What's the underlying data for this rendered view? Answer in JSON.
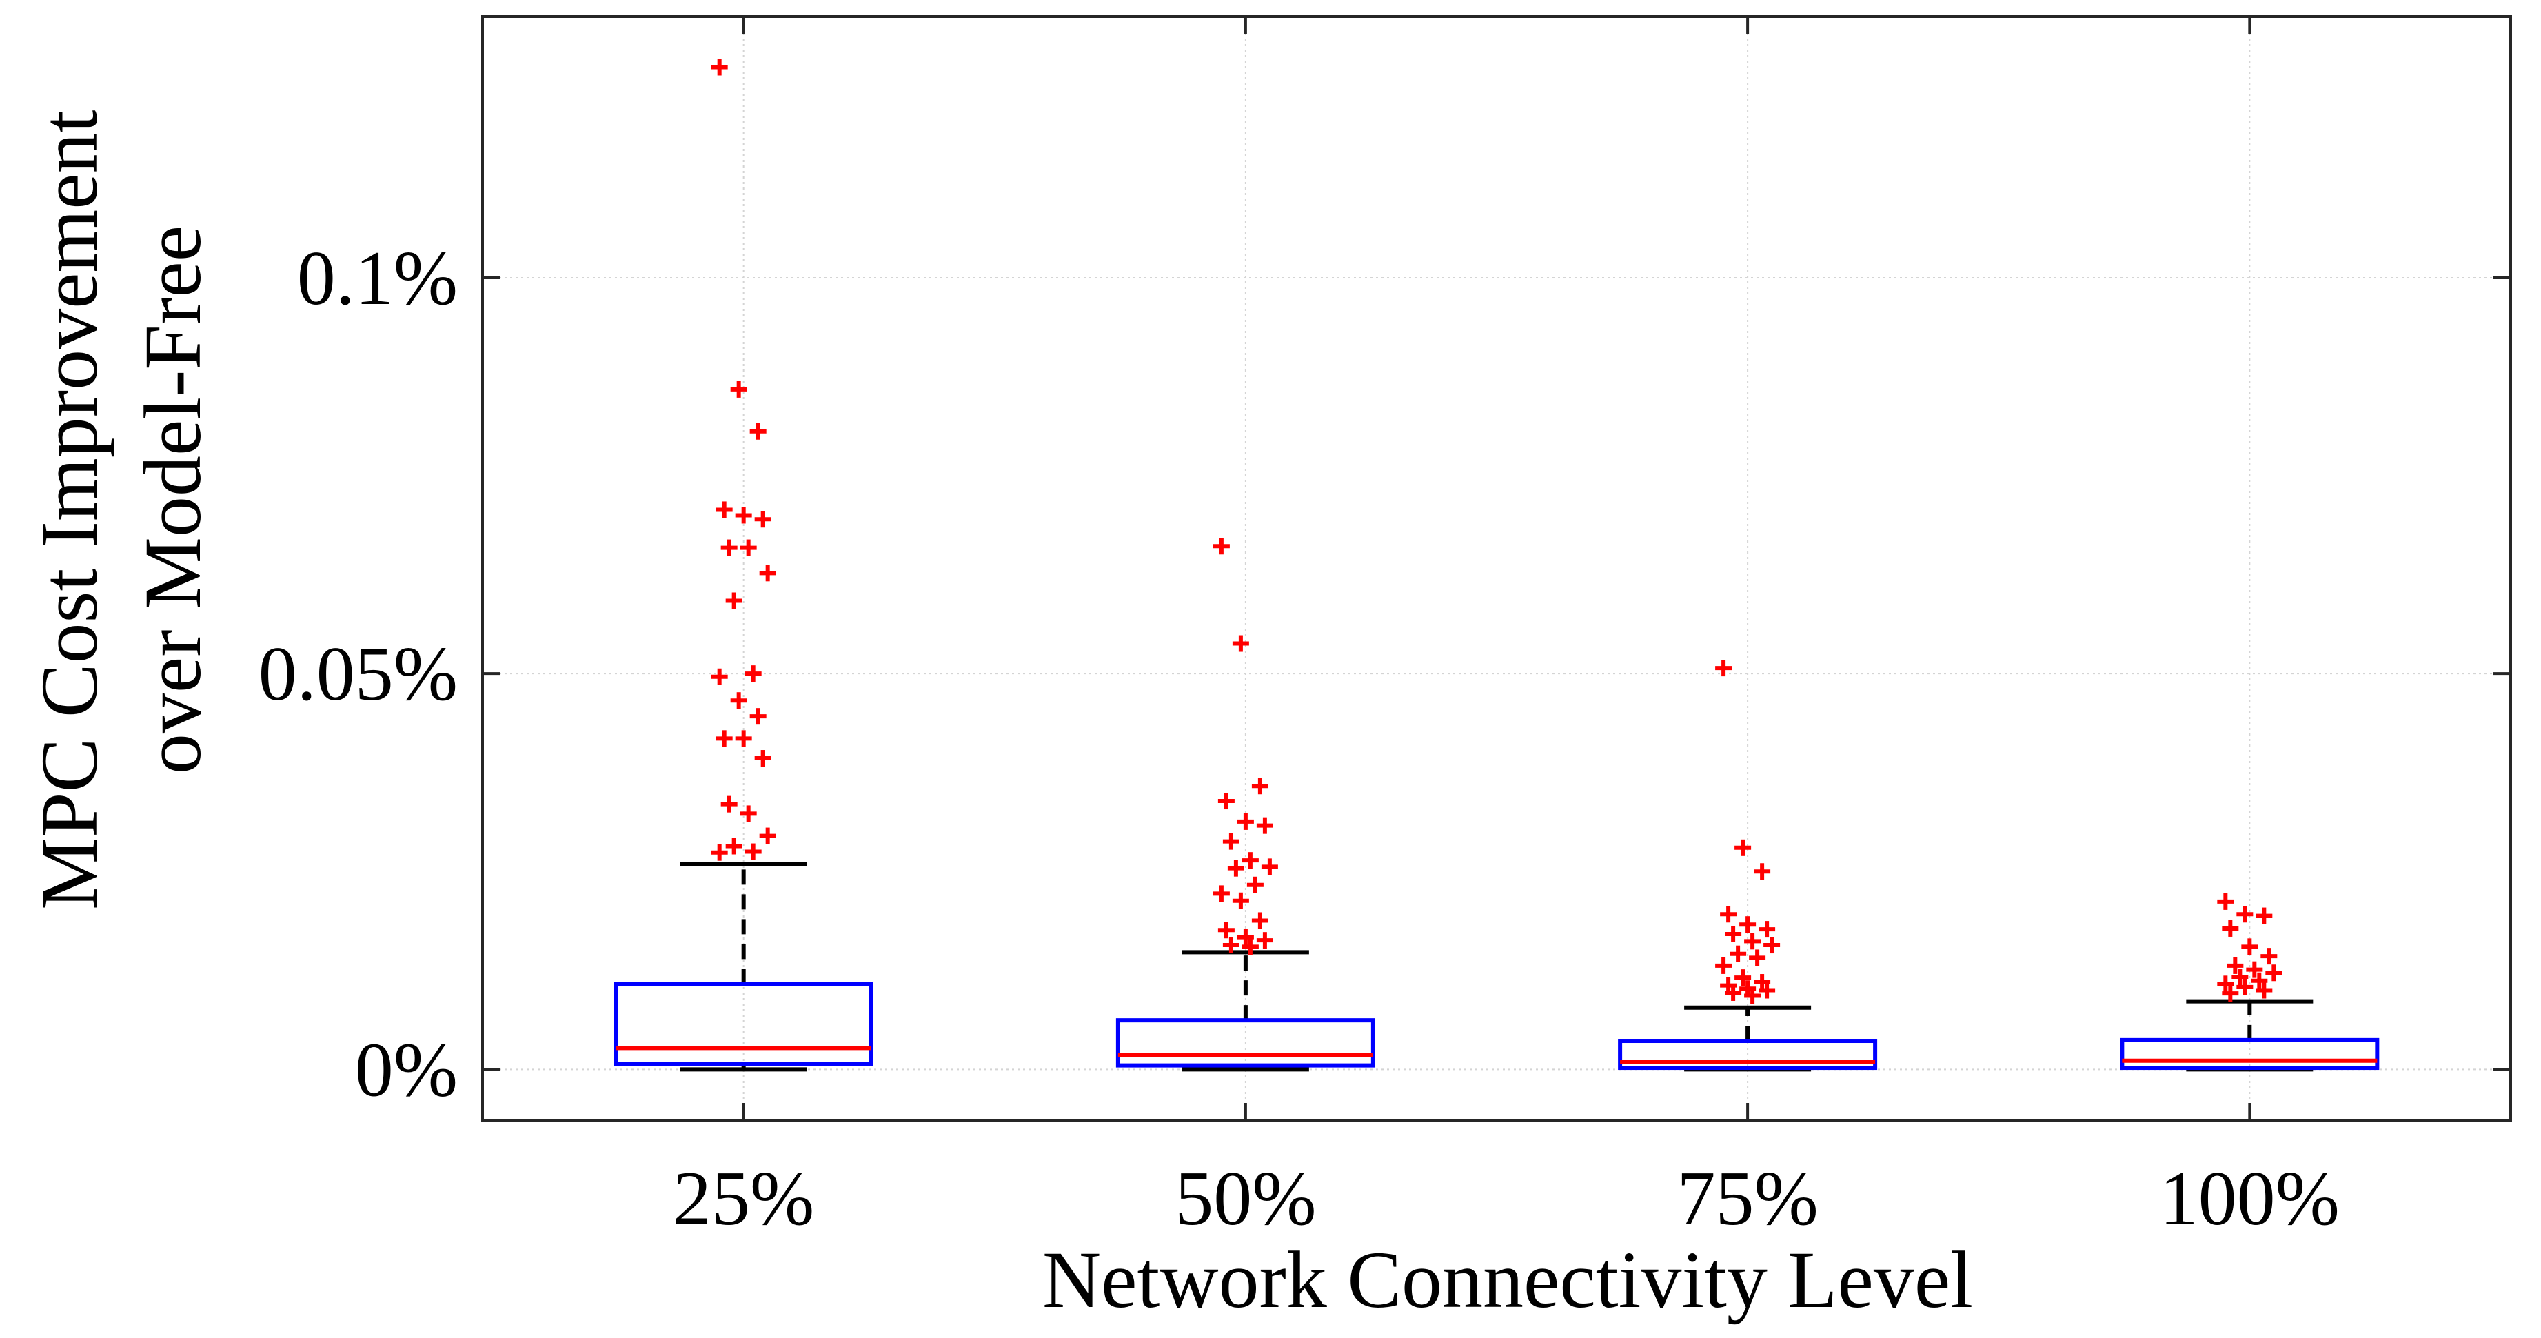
{
  "chart_data": {
    "type": "boxplot",
    "title": "",
    "xlabel": "Network Connectivity Level",
    "ylabel_lines": [
      "MPC Cost Improvement",
      "over Model-Free"
    ],
    "categories": [
      "25%",
      "50%",
      "75%",
      "100%"
    ],
    "y_unit": "%",
    "ylim": [
      -0.0065,
      0.133
    ],
    "yticks": [
      0,
      0.05,
      0.1
    ],
    "ytick_labels": [
      "0%",
      "0.05%",
      "0.1%"
    ],
    "grid": true,
    "colors": {
      "box": "#0000ff",
      "median": "#ff0000",
      "whisker": "#000000",
      "outlier": "#ff0000",
      "grid": "#d4d4d4",
      "axes": "#262626"
    },
    "boxes": [
      {
        "category": "25%",
        "whisker_low": 0.0,
        "q1": 0.0007,
        "median": 0.0027,
        "q3": 0.0108,
        "whisker_high": 0.0259,
        "outliers": [
          0.1266,
          0.0859,
          0.0806,
          0.0707,
          0.07,
          0.0695,
          0.0659,
          0.0659,
          0.0627,
          0.0592,
          0.05,
          0.0496,
          0.0466,
          0.0446,
          0.0418,
          0.0418,
          0.0393,
          0.0335,
          0.0323,
          0.0295,
          0.0282,
          0.0275,
          0.0274
        ]
      },
      {
        "category": "50%",
        "whisker_low": 0.0,
        "q1": 0.0005,
        "median": 0.0018,
        "q3": 0.0062,
        "whisker_high": 0.0148,
        "outliers": [
          0.0661,
          0.0538,
          0.0358,
          0.0339,
          0.0313,
          0.0308,
          0.0288,
          0.0264,
          0.0256,
          0.0254,
          0.0233,
          0.0222,
          0.0213,
          0.0188,
          0.0176,
          0.0167,
          0.0163,
          0.0157,
          0.0155
        ]
      },
      {
        "category": "75%",
        "whisker_low": 0.0,
        "q1": 0.0002,
        "median": 0.0009,
        "q3": 0.0036,
        "whisker_high": 0.0078,
        "outliers": [
          0.0507,
          0.028,
          0.025,
          0.0196,
          0.0183,
          0.0177,
          0.0171,
          0.0162,
          0.0157,
          0.0146,
          0.0141,
          0.0131,
          0.0116,
          0.011,
          0.0106,
          0.0102,
          0.01,
          0.0097,
          0.0093
        ]
      },
      {
        "category": "100%",
        "whisker_low": 0.0,
        "q1": 0.0002,
        "median": 0.0011,
        "q3": 0.0037,
        "whisker_high": 0.0086,
        "outliers": [
          0.0212,
          0.0196,
          0.0194,
          0.0178,
          0.0155,
          0.0143,
          0.0131,
          0.0126,
          0.0122,
          0.0117,
          0.0112,
          0.0108,
          0.0104,
          0.01,
          0.0096
        ]
      }
    ]
  }
}
